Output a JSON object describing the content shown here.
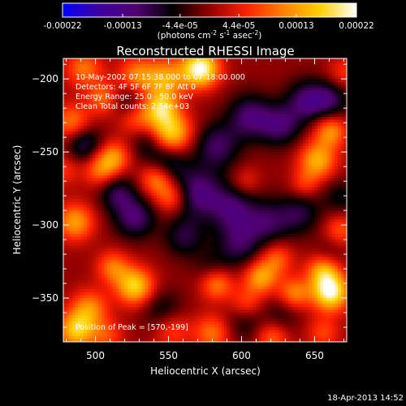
{
  "chart_data": {
    "type": "heatmap",
    "title": "Reconstructed RHESSI Image",
    "xlabel": "Heliocentric X (arcsec)",
    "ylabel": "Heliocentric Y (arcsec)",
    "xlim": [
      478,
      672
    ],
    "ylim": [
      -380,
      -186
    ],
    "x_ticks": [
      500,
      550,
      600,
      650
    ],
    "y_ticks": [
      -200,
      -250,
      -300,
      -350
    ],
    "colorbar": {
      "range": [
        -0.00022,
        0.00022
      ],
      "tick_values": [
        -0.00022,
        -0.00013,
        -4.4e-05,
        4.4e-05,
        0.00013,
        0.00022
      ],
      "tick_labels": [
        "-0.00022",
        "-0.00013",
        "-4.4e-05",
        "4.4e-05",
        "0.00013",
        "0.00022"
      ],
      "units_prefix": "(photons cm",
      "units_exp1": "-2",
      "units_mid": " s",
      "units_exp2": "-1",
      "units_mid2": " asec",
      "units_exp3": "-2",
      "units_suffix": ")",
      "colors": [
        "#0000ff",
        "#4000a0",
        "#500070",
        "#000000",
        "#900000",
        "#ff2000",
        "#ff8000",
        "#ffd000",
        "#ffffff"
      ]
    },
    "annotations": [
      "10-May-2002 07:15:38.000 to 07:18:00.000",
      "Detectors: 4F 5F 6F 7F 8F  Att 0",
      "Energy Range: 25.0 - 50.0 keV",
      "Clean     Total counts: 2.54e+03"
    ],
    "peak_label": "Position of Peak = [570,-199]",
    "blobs": [
      {
        "x": 572,
        "y": -193,
        "v": 0.00022,
        "s": 9
      },
      {
        "x": 548,
        "y": -200,
        "v": 0.00013,
        "s": 10
      },
      {
        "x": 528,
        "y": -198,
        "v": 0.00011,
        "s": 9
      },
      {
        "x": 492,
        "y": -193,
        "v": 0.0001,
        "s": 9
      },
      {
        "x": 506,
        "y": -213,
        "v": 0.0001,
        "s": 8
      },
      {
        "x": 484,
        "y": -230,
        "v": 0.00011,
        "s": 9
      },
      {
        "x": 528,
        "y": -226,
        "v": 9e-05,
        "s": 9
      },
      {
        "x": 552,
        "y": -237,
        "v": 0.00017,
        "s": 10
      },
      {
        "x": 545,
        "y": -220,
        "v": 0.00014,
        "s": 8
      },
      {
        "x": 512,
        "y": -254,
        "v": 0.00012,
        "s": 8
      },
      {
        "x": 503,
        "y": -263,
        "v": 9e-05,
        "s": 8
      },
      {
        "x": 542,
        "y": -268,
        "v": 0.00013,
        "s": 8
      },
      {
        "x": 478,
        "y": -262,
        "v": 6e-05,
        "s": 8
      },
      {
        "x": 552,
        "y": -281,
        "v": 0.0001,
        "s": 8
      },
      {
        "x": 486,
        "y": -298,
        "v": 0.00013,
        "s": 9
      },
      {
        "x": 527,
        "y": -342,
        "v": 0.00017,
        "s": 9
      },
      {
        "x": 512,
        "y": -329,
        "v": 0.0001,
        "s": 8
      },
      {
        "x": 496,
        "y": -357,
        "v": 0.00011,
        "s": 9
      },
      {
        "x": 487,
        "y": -372,
        "v": 0.00016,
        "s": 9
      },
      {
        "x": 508,
        "y": -376,
        "v": 7e-05,
        "s": 8
      },
      {
        "x": 552,
        "y": -371,
        "v": 8e-05,
        "s": 9
      },
      {
        "x": 583,
        "y": -340,
        "v": 0.00012,
        "s": 8
      },
      {
        "x": 603,
        "y": -354,
        "v": 8e-05,
        "s": 8
      },
      {
        "x": 613,
        "y": -336,
        "v": 0.00013,
        "s": 8
      },
      {
        "x": 580,
        "y": -374,
        "v": 0.0001,
        "s": 9
      },
      {
        "x": 621,
        "y": -377,
        "v": 9e-05,
        "s": 8
      },
      {
        "x": 624,
        "y": -323,
        "v": 9e-05,
        "s": 8
      },
      {
        "x": 636,
        "y": -347,
        "v": 0.00011,
        "s": 8
      },
      {
        "x": 661,
        "y": -346,
        "v": 0.00021,
        "s": 9
      },
      {
        "x": 656,
        "y": -331,
        "v": 0.00013,
        "s": 8
      },
      {
        "x": 668,
        "y": -303,
        "v": 8e-05,
        "s": 8
      },
      {
        "x": 652,
        "y": -256,
        "v": 0.00014,
        "s": 9
      },
      {
        "x": 661,
        "y": -236,
        "v": 0.00012,
        "s": 8
      },
      {
        "x": 643,
        "y": -272,
        "v": 6e-05,
        "s": 7
      },
      {
        "x": 603,
        "y": -270,
        "v": 5e-05,
        "s": 7
      },
      {
        "x": 656,
        "y": -374,
        "v": 7e-05,
        "s": 8
      },
      {
        "x": 670,
        "y": -196,
        "v": 6e-05,
        "s": 8
      },
      {
        "x": 548,
        "y": -258,
        "v": -0.0001,
        "s": 10
      },
      {
        "x": 570,
        "y": -278,
        "v": -0.00012,
        "s": 12
      },
      {
        "x": 583,
        "y": -246,
        "v": -0.0001,
        "s": 11
      },
      {
        "x": 606,
        "y": -226,
        "v": -0.00011,
        "s": 11
      },
      {
        "x": 627,
        "y": -232,
        "v": -0.0001,
        "s": 10
      },
      {
        "x": 645,
        "y": -215,
        "v": -0.00011,
        "s": 10
      },
      {
        "x": 661,
        "y": -214,
        "v": -9e-05,
        "s": 9
      },
      {
        "x": 594,
        "y": -289,
        "v": -0.0001,
        "s": 11
      },
      {
        "x": 618,
        "y": -298,
        "v": -9e-05,
        "s": 11
      },
      {
        "x": 640,
        "y": -292,
        "v": -8e-05,
        "s": 10
      },
      {
        "x": 598,
        "y": -313,
        "v": -9e-05,
        "s": 11
      },
      {
        "x": 561,
        "y": -308,
        "v": -8e-05,
        "s": 10
      },
      {
        "x": 527,
        "y": -295,
        "v": -0.00011,
        "s": 10
      },
      {
        "x": 515,
        "y": -278,
        "v": -9e-05,
        "s": 9
      },
      {
        "x": 492,
        "y": -244,
        "v": -0.0001,
        "s": 9
      },
      {
        "x": 522,
        "y": -215,
        "v": -8e-05,
        "s": 9
      },
      {
        "x": 546,
        "y": -359,
        "v": -7e-05,
        "s": 10
      },
      {
        "x": 602,
        "y": -366,
        "v": -6e-05,
        "s": 10
      },
      {
        "x": 628,
        "y": -361,
        "v": -5e-05,
        "s": 9
      },
      {
        "x": 668,
        "y": -281,
        "v": -6e-05,
        "s": 9
      },
      {
        "x": 660,
        "y": -320,
        "v": -4e-05,
        "s": 8
      },
      {
        "x": 535,
        "y": -243,
        "v": -6e-05,
        "s": 8
      },
      {
        "x": 580,
        "y": -330,
        "v": -5e-05,
        "s": 9
      }
    ]
  },
  "footer": {
    "date": "18-Apr-2013 14:52"
  }
}
